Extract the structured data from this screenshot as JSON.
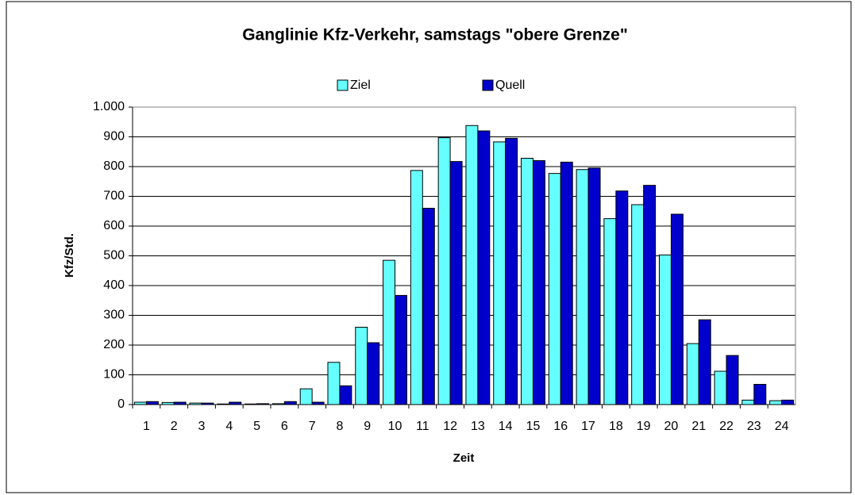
{
  "chart_data": {
    "type": "bar",
    "title": "Ganglinie Kfz-Verkehr, samstags \"obere Grenze\"",
    "x_label": "Zeit",
    "y_label": "Kfz/Std.",
    "categories": [
      "1",
      "2",
      "3",
      "4",
      "5",
      "6",
      "7",
      "8",
      "9",
      "10",
      "11",
      "12",
      "13",
      "14",
      "15",
      "16",
      "17",
      "18",
      "19",
      "20",
      "21",
      "22",
      "23",
      "24"
    ],
    "series": [
      {
        "name": "Ziel",
        "color": "#66ffff",
        "values": [
          8,
          7,
          5,
          2,
          2,
          3,
          53,
          142,
          260,
          485,
          787,
          897,
          938,
          883,
          828,
          777,
          790,
          625,
          672,
          503,
          205,
          112,
          15,
          13
        ]
      },
      {
        "name": "Quell",
        "color": "#0000cc",
        "values": [
          10,
          8,
          5,
          8,
          3,
          10,
          8,
          63,
          208,
          367,
          660,
          817,
          920,
          895,
          820,
          815,
          795,
          718,
          737,
          640,
          285,
          165,
          68,
          15
        ]
      }
    ],
    "ylim": [
      0,
      1000
    ],
    "yticks": [
      0,
      100,
      200,
      300,
      400,
      500,
      600,
      700,
      800,
      900,
      {
        "value": 1000,
        "label": "1.000"
      }
    ],
    "grid": true,
    "legend": "top"
  }
}
